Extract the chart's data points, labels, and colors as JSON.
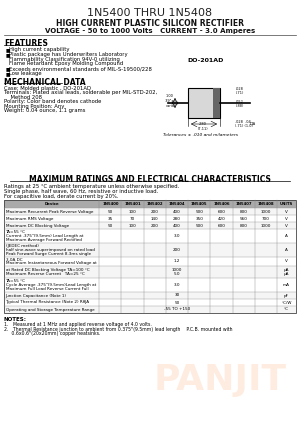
{
  "title": "1N5400 THRU 1N5408",
  "subtitle1": "HIGH CURRENT PLASTIC SILICON RECTIFIER",
  "subtitle2": "VOLTAGE - 50 to 1000 Volts   CURRENT - 3.0 Amperes",
  "features_title": "FEATURES",
  "features": [
    "High current capability",
    "Plastic package has Underwriters Laboratory\nFlammability Classification 94V-0 utilizing\nFlame Retardant Epoxy Molding Compound",
    "Exceeds environmental standards of MIL-S-19500/228",
    "Low leakage"
  ],
  "mech_title": "MECHANICAL DATA",
  "mech_lines": [
    "Case: Molded plastic , DO-201AD",
    "Terminals: Plated axial leads, solderable per MIL-STD-202,",
    "    Method 208",
    "Polarity: Color band denotes cathode",
    "Mounting Position: Any",
    "Weight: 0.04 ounce, 1.1 grams"
  ],
  "package_label": "DO-201AD",
  "tol_note": "Tolerances ± .010 and milameters",
  "ratings_title": "MAXIMUM RATINGS AND ELECTRICAL CHARACTERISTICS",
  "ratings_note1": "Ratings at 25 °C ambient temperature unless otherwise specified.",
  "ratings_note2": "Single phase, half wave, 60 Hz, resistive or inductive load.",
  "ratings_note3": "For capacitive load, derate current by 20%.",
  "table_header": [
    "Device",
    "1N5400",
    "1N5401",
    "1N5402",
    "1N5404",
    "1N5405",
    "1N5406",
    "1N5407",
    "1N5408",
    "UNITS"
  ],
  "table_rows": [
    [
      "Maximum Recurrent Peak Reverse Voltage",
      "50",
      "100",
      "200",
      "400",
      "500",
      "600",
      "800",
      "1000",
      "V"
    ],
    [
      "Maximum RMS Voltage",
      "35",
      "70",
      "140",
      "280",
      "350",
      "420",
      "560",
      "700",
      "V"
    ],
    [
      "Maximum DC Blocking Voltage",
      "50",
      "100",
      "200",
      "400",
      "500",
      "600",
      "800",
      "1000",
      "V"
    ],
    [
      "Maximum Average Forward Rectified\nCurrent .375\"(9.5mm) Lead Length at\nTA=55 °C",
      "",
      "",
      "",
      "3.0",
      "",
      "",
      "",
      "",
      "A"
    ],
    [
      "Peak Forward Surge Current 8.3ms single\nhalf sine-wave superimposed on rated load\n(JEDEC method)",
      "",
      "",
      "",
      "200",
      "",
      "",
      "",
      "",
      "A"
    ],
    [
      "Maximum Instantaneous Forward Voltage at\n3.0A DC",
      "",
      "",
      "",
      "1.2",
      "",
      "",
      "",
      "",
      "V"
    ],
    [
      "Maximum Reverse Current   TA=25 °C\nat Rated DC Blocking Voltage TA=100 °C",
      "",
      "",
      "",
      "5.0\n1000",
      "",
      "",
      "",
      "",
      "µA\nµA"
    ],
    [
      "Maximum Full Load Reverse Current Full\nCycle Average .375\"(9.5mm)Lead Length at\nTA=55 °C",
      "",
      "",
      "",
      "3.0",
      "",
      "",
      "",
      "",
      "mA"
    ],
    [
      "Junction Capacitance (Note 1)",
      "",
      "",
      "",
      "30",
      "",
      "",
      "",
      "",
      "pF"
    ],
    [
      "Typical Thermal Resistance (Note 2) RθJA",
      "",
      "",
      "",
      "50",
      "",
      "",
      "",
      "",
      "°C/W"
    ],
    [
      "Operating and Storage Temperature Range",
      "",
      "",
      "",
      "-55 TO +150",
      "",
      "",
      "",
      "",
      "°C"
    ]
  ],
  "footnote_title": "NOTES:",
  "footnotes": [
    "1.   Measured at 1 MHz and applied reverse voltage of 4.0 volts.",
    "2.   Thermal Resistance junction to ambient from 0.375\"(9.5mm) lead length    P.C.B. mounted with",
    "     0.6x0.6\"(20x20mm) copper heatsinks."
  ],
  "watermark": "PANJIT",
  "watermark_color": "#ff6600",
  "bg_color": "#ffffff",
  "text_color": "#000000"
}
